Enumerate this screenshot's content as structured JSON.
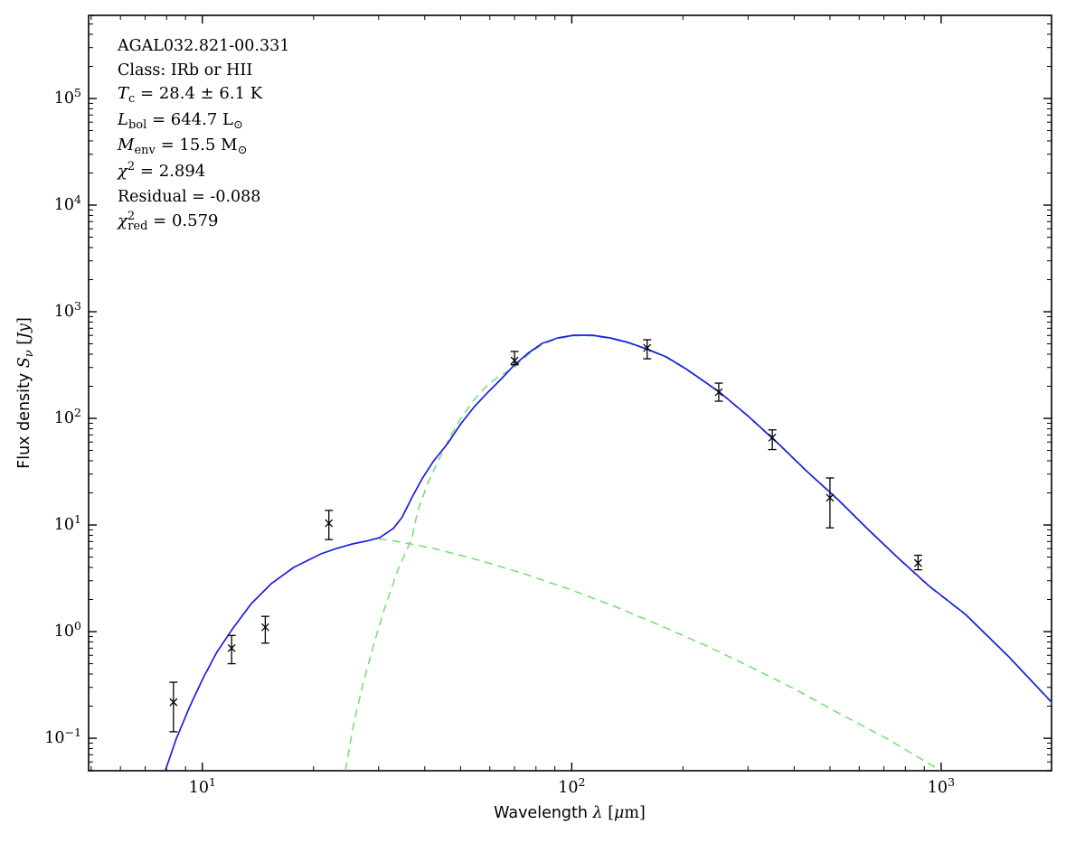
{
  "figure_title": "ATLASGAL SED fit plot",
  "annotation": {
    "lines": [
      {
        "font": "sans",
        "name": "source-name",
        "segments": [
          {
            "t": "AGAL032.821-00.331"
          }
        ]
      },
      {
        "font": "sans",
        "name": "class-line",
        "segments": [
          {
            "t": "Class: IRb or HII"
          }
        ]
      },
      {
        "font": "math",
        "name": "temperature-line",
        "segments": [
          {
            "t": "T",
            "i": true
          },
          {
            "t": "c",
            "sub": true
          },
          {
            "t": " = 28.4 ± 6.1 K"
          }
        ]
      },
      {
        "font": "math",
        "name": "luminosity-line",
        "segments": [
          {
            "t": "L",
            "i": true
          },
          {
            "t": "bol",
            "sub": true
          },
          {
            "t": " = 644.7 L"
          },
          {
            "t": "⊙",
            "sub": true
          }
        ]
      },
      {
        "font": "math",
        "name": "mass-line",
        "segments": [
          {
            "t": "M",
            "i": true
          },
          {
            "t": "env",
            "sub": true
          },
          {
            "t": " = 15.5 M"
          },
          {
            "t": "⊙",
            "sub": true
          }
        ]
      },
      {
        "font": "math",
        "name": "chi2-line",
        "segments": [
          {
            "t": "χ",
            "i": true
          },
          {
            "t": "2",
            "sup": true
          },
          {
            "t": " = 2.894"
          }
        ]
      },
      {
        "font": "sans",
        "name": "residual-line",
        "segments": [
          {
            "t": "Residual = -0.088"
          }
        ]
      },
      {
        "font": "math",
        "name": "chi2red-line",
        "segments": [
          {
            "t": "χ",
            "i": true
          },
          {
            "t": "2",
            "sup": true
          },
          {
            "t": "red",
            "sub": true,
            "tuck": true
          },
          {
            "t": " = 0.579"
          }
        ]
      }
    ]
  },
  "chart_data": {
    "type": "line",
    "title": "",
    "xlabel": "Wavelength λ [μm]",
    "ylabel": "Flux density Sν [Jy]",
    "xlabel_segments": [
      {
        "t": "Wavelength ",
        "f": "sans"
      },
      {
        "t": "λ",
        "i": true
      },
      {
        "t": " [",
        "f": "serif"
      },
      {
        "t": "μ",
        "i": true
      },
      {
        "t": "m]",
        "f": "serif"
      }
    ],
    "ylabel_segments": [
      {
        "t": "Flux density ",
        "f": "sans"
      },
      {
        "t": "S",
        "i": true
      },
      {
        "t": "ν",
        "i": true,
        "sub": true
      },
      {
        "t": " [",
        "f": "serif"
      },
      {
        "t": "Jy",
        "i": true
      },
      {
        "t": "]",
        "f": "serif"
      }
    ],
    "x_axis": {
      "scale": "log",
      "min": 4.92,
      "max": 1990,
      "major_ticks": [
        10,
        100,
        1000
      ],
      "tick_exponents": [
        1,
        2,
        3
      ]
    },
    "y_axis": {
      "scale": "log",
      "min": 0.0496,
      "max": 602000,
      "major_ticks": [
        100000,
        10000,
        1000,
        100,
        10,
        1,
        0.1
      ],
      "tick_exponents": [
        5,
        4,
        3,
        2,
        1,
        0,
        -1
      ]
    },
    "grid": false,
    "legend": false,
    "fit_parameters": {
      "source": "AGAL032.821-00.331",
      "class": "IRb or HII",
      "T_c_K": "28.4 ± 6.1",
      "L_bol_Lsun": 644.7,
      "M_env_Msun": 15.5,
      "chi2": 2.894,
      "residual": -0.088,
      "chi2_red": 0.579
    },
    "colors": {
      "model": "#1d1de0",
      "components": "#70e070",
      "data": "#000000"
    },
    "data_points": {
      "name": "photometry",
      "marker": "x",
      "color": "#000000",
      "points": [
        {
          "wavelength_um": 8.35,
          "flux_jy": 0.218,
          "err_hi_jy": 0.335,
          "err_lo_jy": 0.115
        },
        {
          "wavelength_um": 12.0,
          "flux_jy": 0.7,
          "err_hi_jy": 0.92,
          "err_lo_jy": 0.5
        },
        {
          "wavelength_um": 14.8,
          "flux_jy": 1.1,
          "err_hi_jy": 1.39,
          "err_lo_jy": 0.78
        },
        {
          "wavelength_um": 22.0,
          "flux_jy": 10.4,
          "err_hi_jy": 13.7,
          "err_lo_jy": 7.3
        },
        {
          "wavelength_um": 70.0,
          "flux_jy": 348,
          "err_hi_jy": 424,
          "err_lo_jy": 318
        },
        {
          "wavelength_um": 160,
          "flux_jy": 458,
          "err_hi_jy": 546,
          "err_lo_jy": 362
        },
        {
          "wavelength_um": 250,
          "flux_jy": 176,
          "err_hi_jy": 214,
          "err_lo_jy": 145
        },
        {
          "wavelength_um": 349,
          "flux_jy": 66,
          "err_hi_jy": 78,
          "err_lo_jy": 51
        },
        {
          "wavelength_um": 500,
          "flux_jy": 18.0,
          "err_hi_jy": 27.6,
          "err_lo_jy": 9.4
        },
        {
          "wavelength_um": 866,
          "flux_jy": 4.4,
          "err_hi_jy": 5.2,
          "err_lo_jy": 3.8
        }
      ]
    },
    "series": [
      {
        "name": "cold-greybody-component",
        "style": "dashed",
        "color": "#70e070",
        "width": 1.5,
        "points": [
          [
            24.4,
            0.05
          ],
          [
            25.7,
            0.139
          ],
          [
            27.1,
            0.304
          ],
          [
            29.0,
            0.73
          ],
          [
            31.2,
            1.69
          ],
          [
            33.9,
            3.85
          ],
          [
            36.9,
            7.45
          ],
          [
            38.2,
            13.2
          ],
          [
            40.7,
            24.5
          ],
          [
            43.5,
            40
          ],
          [
            46.6,
            65
          ],
          [
            50.1,
            100
          ],
          [
            54,
            145
          ],
          [
            58.3,
            195
          ],
          [
            63.5,
            248
          ],
          [
            69.9,
            300
          ],
          [
            76.1,
            395
          ],
          [
            83.2,
            495
          ],
          [
            91.6,
            560
          ],
          [
            101.4,
            595
          ],
          [
            113.5,
            595
          ],
          [
            127.1,
            562
          ],
          [
            142.2,
            510
          ],
          [
            159.2,
            444
          ],
          [
            180.2,
            373
          ],
          [
            205.2,
            284
          ],
          [
            251.3,
            174
          ],
          [
            299.3,
            105
          ],
          [
            360.6,
            58.4
          ],
          [
            434.2,
            31.3
          ],
          [
            526,
            17.1
          ],
          [
            634,
            9.0
          ],
          [
            763,
            4.9
          ],
          [
            924,
            2.68
          ],
          [
            1164,
            1.43
          ],
          [
            1518,
            0.584
          ],
          [
            1990,
            0.215
          ]
        ]
      },
      {
        "name": "hot-component",
        "style": "dashed",
        "color": "#70e070",
        "width": 1.5,
        "points": [
          [
            30,
            7.4
          ],
          [
            33,
            7.1
          ],
          [
            36.9,
            6.6
          ],
          [
            42.3,
            6.03
          ],
          [
            56.1,
            4.67
          ],
          [
            74.4,
            3.48
          ],
          [
            98.5,
            2.5
          ],
          [
            130.5,
            1.73
          ],
          [
            172.8,
            1.15
          ],
          [
            228.8,
            0.75
          ],
          [
            303,
            0.47
          ],
          [
            401,
            0.29
          ],
          [
            531,
            0.17
          ],
          [
            703,
            0.102
          ],
          [
            995,
            0.05
          ]
        ]
      },
      {
        "name": "total-model",
        "style": "solid",
        "color": "#1d1de0",
        "width": 1.7,
        "points": [
          [
            7.94,
            0.05
          ],
          [
            8.49,
            0.098
          ],
          [
            9.24,
            0.198
          ],
          [
            10.06,
            0.37
          ],
          [
            10.94,
            0.64
          ],
          [
            12.11,
            1.08
          ],
          [
            13.56,
            1.83
          ],
          [
            15.35,
            2.81
          ],
          [
            17.67,
            4.0
          ],
          [
            20.93,
            5.36
          ],
          [
            23,
            6.0
          ],
          [
            25.49,
            6.64
          ],
          [
            28,
            7.1
          ],
          [
            30.2,
            7.6
          ],
          [
            32.9,
            9.3
          ],
          [
            34.7,
            11.8
          ],
          [
            36.9,
            18
          ],
          [
            39.3,
            27
          ],
          [
            42.3,
            40
          ],
          [
            46.1,
            58
          ],
          [
            50.1,
            89
          ],
          [
            54.5,
            129
          ],
          [
            59.3,
            176
          ],
          [
            64.6,
            236
          ],
          [
            69.9,
            316
          ],
          [
            76.1,
            408
          ],
          [
            83.2,
            505
          ],
          [
            91.6,
            568
          ],
          [
            101.4,
            602
          ],
          [
            113.5,
            602
          ],
          [
            127.1,
            568
          ],
          [
            142.2,
            515
          ],
          [
            159.2,
            449
          ],
          [
            180.2,
            377
          ],
          [
            205.2,
            287
          ],
          [
            251.3,
            176
          ],
          [
            299.3,
            106
          ],
          [
            360.6,
            59
          ],
          [
            434.2,
            31.6
          ],
          [
            526,
            17.3
          ],
          [
            634,
            9.1
          ],
          [
            763,
            4.95
          ],
          [
            924,
            2.71
          ],
          [
            1164,
            1.45
          ],
          [
            1518,
            0.59
          ],
          [
            1990,
            0.218
          ]
        ]
      }
    ]
  }
}
